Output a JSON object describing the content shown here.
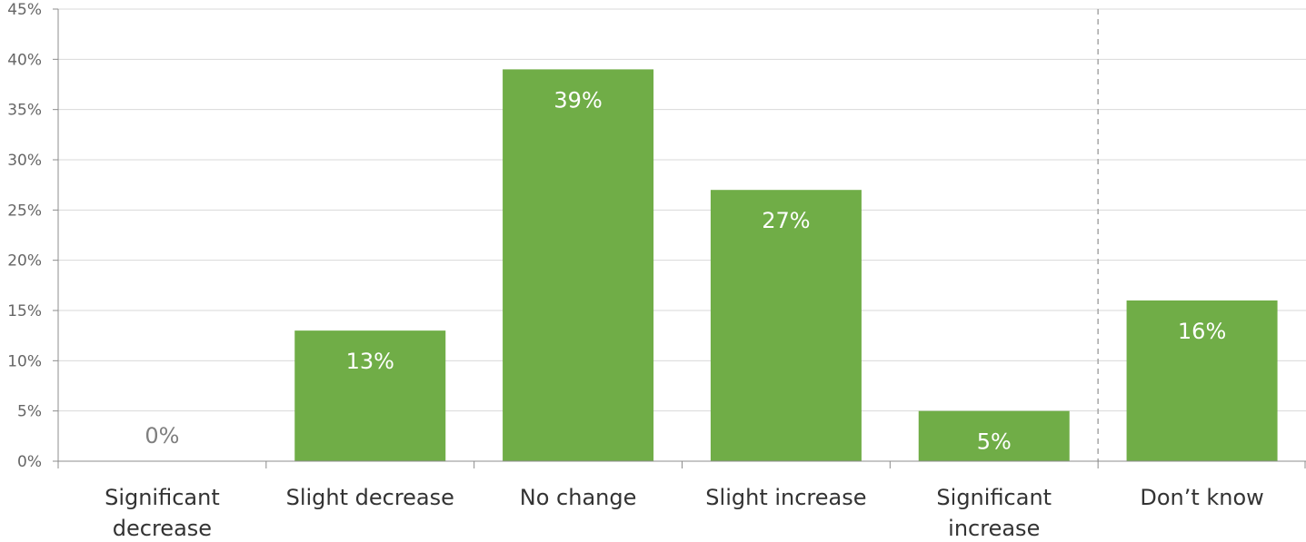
{
  "chart_data": {
    "type": "bar",
    "categories": [
      [
        "Significant",
        "decrease"
      ],
      [
        "Slight decrease"
      ],
      [
        "No change"
      ],
      [
        "Slight increase"
      ],
      [
        "Significant",
        "increase"
      ],
      [
        "Don’t know"
      ]
    ],
    "values": [
      0,
      13,
      39,
      27,
      5,
      16
    ],
    "data_labels": [
      "0%",
      "13%",
      "39%",
      "27%",
      "5%",
      "16%"
    ],
    "y_ticks": [
      0,
      5,
      10,
      15,
      20,
      25,
      30,
      35,
      40,
      45
    ],
    "y_tick_labels": [
      "0%",
      "5%",
      "10%",
      "15%",
      "20%",
      "25%",
      "30%",
      "35%",
      "40%",
      "45%"
    ],
    "ylim": [
      0,
      45
    ],
    "bar_color": "#70ad47",
    "label_color_inside": "#ffffff",
    "label_color_zero": "#7f7f7f",
    "separator_after_category": 4,
    "grid": true,
    "legend": "none"
  }
}
